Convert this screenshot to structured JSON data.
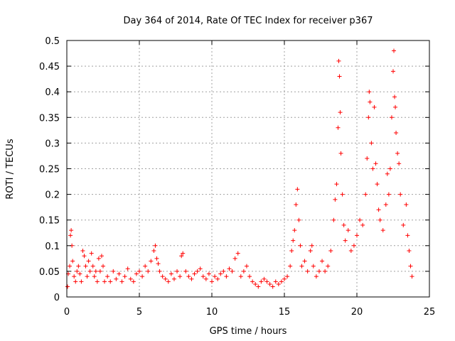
{
  "chart_data": {
    "type": "scatter",
    "title": "Day 364 of 2014, Rate Of TEC Index for receiver p367",
    "xlabel": "GPS time / hours",
    "ylabel": "ROTI / TECUs",
    "xlim": [
      0,
      25
    ],
    "ylim": [
      0,
      0.5
    ],
    "x_ticks": [
      0,
      5,
      10,
      15,
      20,
      25
    ],
    "y_ticks": [
      0,
      0.05,
      0.1,
      0.15,
      0.2,
      0.25,
      0.3,
      0.35,
      0.4,
      0.45,
      0.5
    ],
    "x_tick_labels": [
      "0",
      "5",
      "10",
      "15",
      "20",
      "25"
    ],
    "y_tick_labels": [
      "0",
      "0.05",
      "0.1",
      "0.15",
      "0.2",
      "0.25",
      "0.3",
      "0.35",
      "0.4",
      "0.45",
      "0.5"
    ],
    "grid": true,
    "marker": "+",
    "color": "#ff0000",
    "series": [
      {
        "name": "ROTI",
        "points": [
          [
            0.05,
            0.02
          ],
          [
            0.1,
            0.045
          ],
          [
            0.2,
            0.06
          ],
          [
            0.25,
            0.12
          ],
          [
            0.3,
            0.13
          ],
          [
            0.35,
            0.1
          ],
          [
            0.4,
            0.07
          ],
          [
            0.5,
            0.04
          ],
          [
            0.6,
            0.03
          ],
          [
            0.7,
            0.05
          ],
          [
            0.8,
            0.06
          ],
          [
            0.9,
            0.045
          ],
          [
            1.0,
            0.03
          ],
          [
            1.1,
            0.09
          ],
          [
            1.2,
            0.08
          ],
          [
            1.3,
            0.06
          ],
          [
            1.4,
            0.04
          ],
          [
            1.5,
            0.07
          ],
          [
            1.6,
            0.05
          ],
          [
            1.7,
            0.085
          ],
          [
            1.8,
            0.06
          ],
          [
            1.9,
            0.04
          ],
          [
            2.0,
            0.05
          ],
          [
            2.1,
            0.03
          ],
          [
            2.2,
            0.075
          ],
          [
            2.3,
            0.05
          ],
          [
            2.4,
            0.08
          ],
          [
            2.5,
            0.06
          ],
          [
            2.6,
            0.03
          ],
          [
            2.8,
            0.04
          ],
          [
            3.0,
            0.03
          ],
          [
            3.2,
            0.05
          ],
          [
            3.4,
            0.035
          ],
          [
            3.6,
            0.045
          ],
          [
            3.8,
            0.03
          ],
          [
            4.0,
            0.04
          ],
          [
            4.2,
            0.055
          ],
          [
            4.4,
            0.035
          ],
          [
            4.6,
            0.03
          ],
          [
            4.8,
            0.045
          ],
          [
            5.0,
            0.05
          ],
          [
            5.2,
            0.04
          ],
          [
            5.4,
            0.06
          ],
          [
            5.6,
            0.05
          ],
          [
            5.8,
            0.07
          ],
          [
            6.0,
            0.09
          ],
          [
            6.1,
            0.1
          ],
          [
            6.2,
            0.075
          ],
          [
            6.3,
            0.065
          ],
          [
            6.4,
            0.05
          ],
          [
            6.6,
            0.04
          ],
          [
            6.8,
            0.035
          ],
          [
            7.0,
            0.03
          ],
          [
            7.2,
            0.045
          ],
          [
            7.4,
            0.035
          ],
          [
            7.6,
            0.05
          ],
          [
            7.8,
            0.04
          ],
          [
            7.9,
            0.08
          ],
          [
            8.0,
            0.085
          ],
          [
            8.2,
            0.05
          ],
          [
            8.4,
            0.04
          ],
          [
            8.6,
            0.035
          ],
          [
            8.8,
            0.045
          ],
          [
            9.0,
            0.05
          ],
          [
            9.2,
            0.055
          ],
          [
            9.4,
            0.04
          ],
          [
            9.6,
            0.035
          ],
          [
            9.8,
            0.045
          ],
          [
            10.0,
            0.03
          ],
          [
            10.2,
            0.04
          ],
          [
            10.4,
            0.035
          ],
          [
            10.6,
            0.045
          ],
          [
            10.8,
            0.05
          ],
          [
            11.0,
            0.04
          ],
          [
            11.2,
            0.055
          ],
          [
            11.4,
            0.05
          ],
          [
            11.6,
            0.075
          ],
          [
            11.8,
            0.085
          ],
          [
            12.0,
            0.04
          ],
          [
            12.2,
            0.05
          ],
          [
            12.4,
            0.06
          ],
          [
            12.6,
            0.04
          ],
          [
            12.8,
            0.03
          ],
          [
            13.0,
            0.025
          ],
          [
            13.2,
            0.02
          ],
          [
            13.4,
            0.03
          ],
          [
            13.6,
            0.035
          ],
          [
            13.8,
            0.03
          ],
          [
            14.0,
            0.025
          ],
          [
            14.2,
            0.02
          ],
          [
            14.4,
            0.03
          ],
          [
            14.6,
            0.025
          ],
          [
            14.8,
            0.03
          ],
          [
            15.0,
            0.035
          ],
          [
            15.2,
            0.04
          ],
          [
            15.4,
            0.06
          ],
          [
            15.5,
            0.09
          ],
          [
            15.6,
            0.11
          ],
          [
            15.7,
            0.13
          ],
          [
            15.8,
            0.18
          ],
          [
            15.9,
            0.21
          ],
          [
            16.0,
            0.15
          ],
          [
            16.1,
            0.1
          ],
          [
            16.2,
            0.06
          ],
          [
            16.4,
            0.07
          ],
          [
            16.6,
            0.05
          ],
          [
            16.8,
            0.09
          ],
          [
            16.9,
            0.1
          ],
          [
            17.0,
            0.06
          ],
          [
            17.2,
            0.04
          ],
          [
            17.4,
            0.05
          ],
          [
            17.6,
            0.07
          ],
          [
            17.8,
            0.05
          ],
          [
            18.0,
            0.06
          ],
          [
            18.2,
            0.09
          ],
          [
            18.4,
            0.15
          ],
          [
            18.5,
            0.19
          ],
          [
            18.6,
            0.22
          ],
          [
            18.7,
            0.33
          ],
          [
            18.75,
            0.46
          ],
          [
            18.8,
            0.43
          ],
          [
            18.85,
            0.36
          ],
          [
            18.9,
            0.28
          ],
          [
            19.0,
            0.2
          ],
          [
            19.1,
            0.14
          ],
          [
            19.2,
            0.11
          ],
          [
            19.4,
            0.13
          ],
          [
            19.6,
            0.09
          ],
          [
            19.8,
            0.1
          ],
          [
            20.0,
            0.12
          ],
          [
            20.2,
            0.15
          ],
          [
            20.4,
            0.14
          ],
          [
            20.6,
            0.2
          ],
          [
            20.7,
            0.27
          ],
          [
            20.8,
            0.35
          ],
          [
            20.85,
            0.4
          ],
          [
            20.9,
            0.38
          ],
          [
            21.0,
            0.3
          ],
          [
            21.1,
            0.25
          ],
          [
            21.2,
            0.37
          ],
          [
            21.3,
            0.26
          ],
          [
            21.4,
            0.22
          ],
          [
            21.5,
            0.17
          ],
          [
            21.6,
            0.15
          ],
          [
            21.8,
            0.13
          ],
          [
            22.0,
            0.18
          ],
          [
            22.1,
            0.24
          ],
          [
            22.2,
            0.2
          ],
          [
            22.3,
            0.25
          ],
          [
            22.4,
            0.35
          ],
          [
            22.5,
            0.44
          ],
          [
            22.55,
            0.48
          ],
          [
            22.6,
            0.39
          ],
          [
            22.65,
            0.37
          ],
          [
            22.7,
            0.32
          ],
          [
            22.8,
            0.28
          ],
          [
            22.9,
            0.26
          ],
          [
            23.0,
            0.2
          ],
          [
            23.2,
            0.14
          ],
          [
            23.4,
            0.18
          ],
          [
            23.5,
            0.12
          ],
          [
            23.6,
            0.09
          ],
          [
            23.7,
            0.06
          ],
          [
            23.8,
            0.04
          ]
        ]
      }
    ]
  }
}
